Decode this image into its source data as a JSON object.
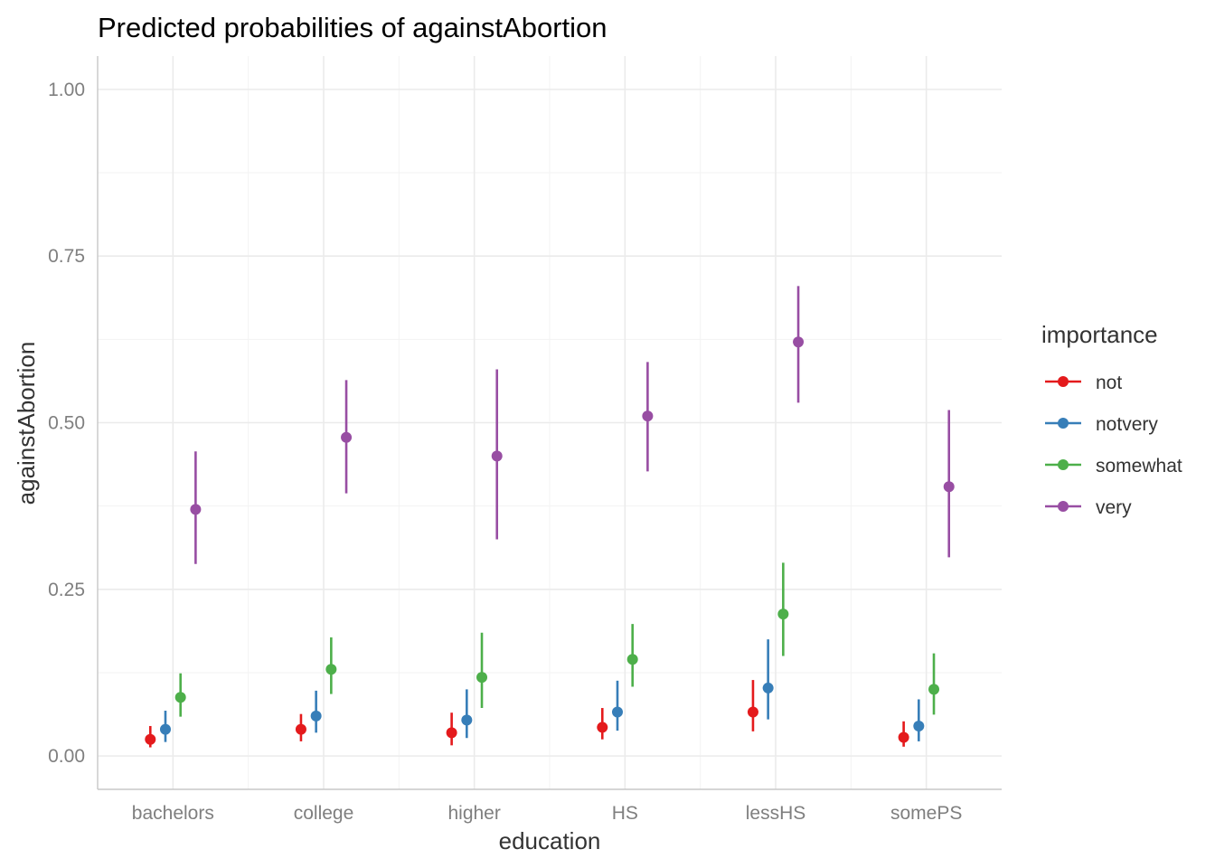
{
  "chart_data": {
    "type": "errorbar-point",
    "title": "Predicted probabilities of againstAbortion",
    "xlabel": "education",
    "ylabel": "againstAbortion",
    "categories": [
      "bachelors",
      "college",
      "higher",
      "HS",
      "lessHS",
      "somePS"
    ],
    "ylim": [
      -0.05,
      1.05
    ],
    "yticks": [
      "0.00",
      "0.25",
      "0.50",
      "0.75",
      "1.00"
    ],
    "ytick_values": [
      0,
      0.25,
      0.5,
      0.75,
      1.0
    ],
    "grid": true,
    "legend": {
      "title": "importance",
      "position": "right"
    },
    "series": [
      {
        "name": "not",
        "color": "#e41a1c",
        "values": [
          0.025,
          0.04,
          0.035,
          0.043,
          0.066,
          0.028
        ],
        "lower": [
          0.013,
          0.022,
          0.016,
          0.025,
          0.037,
          0.014
        ],
        "upper": [
          0.045,
          0.063,
          0.065,
          0.072,
          0.114,
          0.052
        ]
      },
      {
        "name": "notvery",
        "color": "#377eb8",
        "values": [
          0.04,
          0.06,
          0.054,
          0.066,
          0.102,
          0.045
        ],
        "lower": [
          0.021,
          0.035,
          0.027,
          0.038,
          0.055,
          0.022
        ],
        "upper": [
          0.068,
          0.098,
          0.1,
          0.113,
          0.175,
          0.085
        ]
      },
      {
        "name": "somewhat",
        "color": "#4daf4a",
        "values": [
          0.088,
          0.13,
          0.118,
          0.145,
          0.213,
          0.1
        ],
        "lower": [
          0.059,
          0.093,
          0.072,
          0.104,
          0.15,
          0.062
        ],
        "upper": [
          0.124,
          0.178,
          0.185,
          0.198,
          0.29,
          0.154
        ]
      },
      {
        "name": "very",
        "color": "#984ea3",
        "values": [
          0.37,
          0.478,
          0.45,
          0.51,
          0.621,
          0.404
        ],
        "lower": [
          0.288,
          0.394,
          0.325,
          0.427,
          0.53,
          0.298
        ],
        "upper": [
          0.457,
          0.564,
          0.58,
          0.591,
          0.705,
          0.519
        ]
      }
    ]
  }
}
